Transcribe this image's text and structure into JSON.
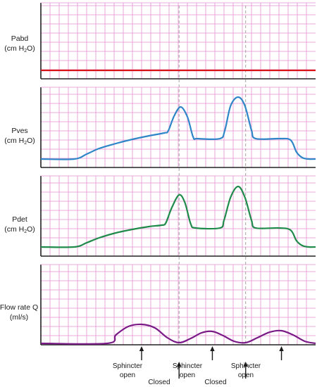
{
  "chart_data": {
    "type": "line",
    "grid": true,
    "panels": [
      {
        "id": "pabd",
        "label_line1": "Pabd",
        "label_line2_pre": "(cm H",
        "label_line2_sub": "2",
        "label_line2_post": "O)",
        "color": "#d8141a",
        "series": [
          [
            0,
            100
          ],
          [
            330,
            100
          ]
        ]
      },
      {
        "id": "pves",
        "label_line1": "Pves",
        "label_line2_pre": "(cm H",
        "label_line2_sub": "2",
        "label_line2_post": "O)",
        "color": "#2e86c8",
        "series": [
          [
            0,
            226
          ],
          [
            40,
            226
          ],
          [
            55,
            219
          ],
          [
            70,
            211
          ],
          [
            90,
            204
          ],
          [
            110,
            198
          ],
          [
            130,
            193
          ],
          [
            148,
            189
          ],
          [
            153,
            186
          ],
          [
            160,
            165
          ],
          [
            168,
            152
          ],
          [
            176,
            166
          ],
          [
            183,
            195
          ],
          [
            188,
            197
          ],
          [
            215,
            197
          ],
          [
            221,
            185
          ],
          [
            228,
            150
          ],
          [
            237,
            138
          ],
          [
            245,
            150
          ],
          [
            253,
            185
          ],
          [
            258,
            197
          ],
          [
            286,
            197
          ],
          [
            300,
            199
          ],
          [
            307,
            216
          ],
          [
            314,
            224
          ],
          [
            322,
            226
          ],
          [
            330,
            226
          ]
        ]
      },
      {
        "id": "pdet",
        "label_line1": "Pdet",
        "label_line2_pre": "(cm H",
        "label_line2_sub": "2",
        "label_line2_post": "O)",
        "color": "#1f8a4a",
        "series": [
          [
            0,
            351
          ],
          [
            40,
            351
          ],
          [
            55,
            345
          ],
          [
            70,
            338
          ],
          [
            90,
            331
          ],
          [
            110,
            326
          ],
          [
            130,
            322
          ],
          [
            145,
            320
          ],
          [
            150,
            317
          ],
          [
            157,
            296
          ],
          [
            166,
            277
          ],
          [
            173,
            288
          ],
          [
            180,
            318
          ],
          [
            186,
            324
          ],
          [
            215,
            324
          ],
          [
            220,
            313
          ],
          [
            228,
            280
          ],
          [
            237,
            265
          ],
          [
            245,
            280
          ],
          [
            253,
            313
          ],
          [
            258,
            324
          ],
          [
            286,
            324
          ],
          [
            300,
            327
          ],
          [
            307,
            342
          ],
          [
            314,
            349
          ],
          [
            322,
            351
          ],
          [
            330,
            351
          ]
        ]
      },
      {
        "id": "flow",
        "label_line1": "Flow rate Q",
        "label_line2_pre": "(ml/s)",
        "label_line2_sub": "",
        "label_line2_post": "",
        "color": "#7a1a86",
        "series": [
          [
            0,
            488
          ],
          [
            80,
            488
          ],
          [
            90,
            476
          ],
          [
            105,
            464
          ],
          [
            121,
            461
          ],
          [
            137,
            466
          ],
          [
            152,
            480
          ],
          [
            166,
            487
          ],
          [
            180,
            481
          ],
          [
            193,
            473
          ],
          [
            206,
            471
          ],
          [
            219,
            477
          ],
          [
            232,
            485
          ],
          [
            246,
            487
          ],
          [
            260,
            480
          ],
          [
            275,
            472
          ],
          [
            289,
            470
          ],
          [
            303,
            476
          ],
          [
            317,
            485
          ],
          [
            330,
            488
          ]
        ]
      }
    ],
    "event_markers": [
      {
        "t": 121,
        "kind": "arrow",
        "label_lines": [
          "Sphincter",
          "open"
        ],
        "label_pos": "upper"
      },
      {
        "t": 166,
        "kind": "arrow+dashed",
        "label_lines": [
          "Closed"
        ],
        "label_pos": "lower"
      },
      {
        "t": 206,
        "kind": "arrow",
        "label_lines": [
          "Sphincter",
          "open"
        ],
        "label_pos": "upper"
      },
      {
        "t": 246,
        "kind": "arrow+dashed",
        "label_lines": [
          "Closed"
        ],
        "label_pos": "lower"
      },
      {
        "t": 289,
        "kind": "arrow",
        "label_lines": [
          "Sphincter",
          "open"
        ],
        "label_pos": "upper"
      }
    ],
    "colors": {
      "grid": "#e58fd1",
      "frame": "#222222",
      "marker": "#1a1a1a",
      "dash": "#9a9a9a"
    }
  }
}
